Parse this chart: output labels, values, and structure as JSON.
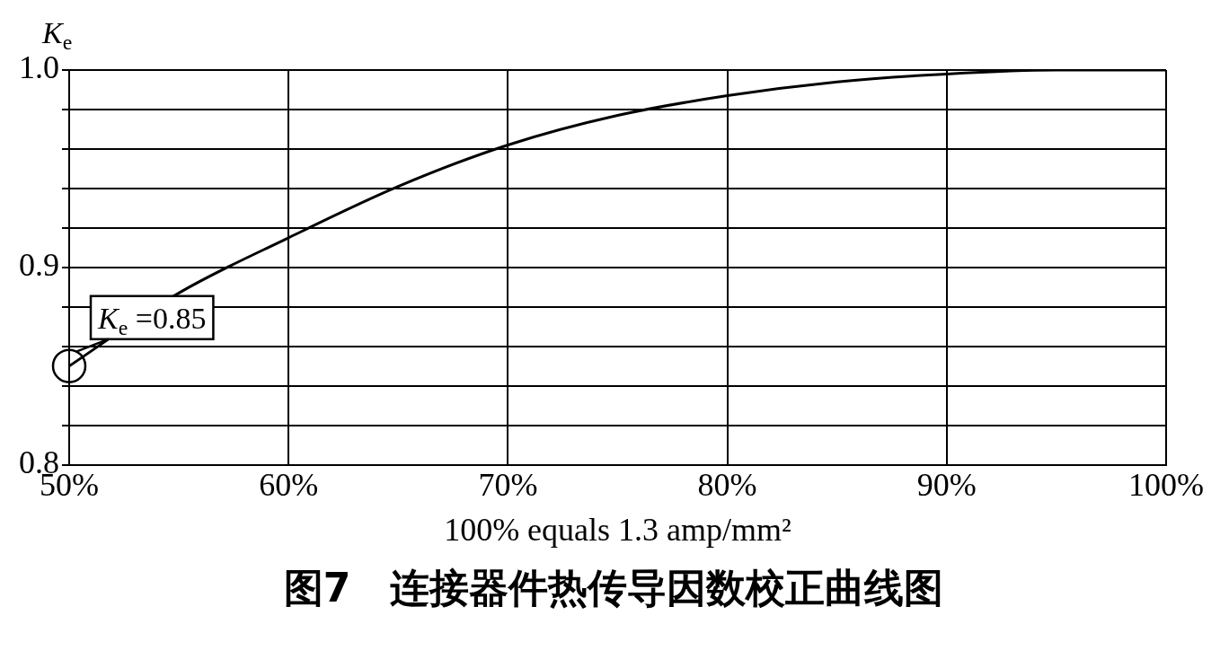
{
  "chart_data": {
    "type": "line",
    "title": "图7　连接器件热传导因数校正曲线图",
    "xlabel": "100% equals 1.3 amp/mm²",
    "ylabel": "K$_{e}$",
    "x": [
      50,
      55,
      60,
      65,
      70,
      75,
      80,
      85,
      90,
      95,
      100
    ],
    "series": [
      {
        "color": "#000000",
        "values": [
          0.85,
          0.887,
          0.915,
          0.941,
          0.962,
          0.977,
          0.987,
          0.994,
          0.998,
          1.0,
          1.0
        ]
      }
    ],
    "xlim": [
      50,
      100
    ],
    "xticks": [
      {
        "value": 50,
        "label": "50%"
      },
      {
        "value": 60,
        "label": "60%"
      },
      {
        "value": 70,
        "label": "70%"
      },
      {
        "value": 80,
        "label": "80%"
      },
      {
        "value": 90,
        "label": "90%"
      },
      {
        "value": 100,
        "label": "100%"
      }
    ],
    "ylim": [
      0.8,
      1.0
    ],
    "yticks": [
      {
        "value": 0.8,
        "label": "0.8"
      },
      {
        "value": 0.82,
        "label": null
      },
      {
        "value": 0.84,
        "label": null
      },
      {
        "value": 0.86,
        "label": null
      },
      {
        "value": 0.88,
        "label": null
      },
      {
        "value": 0.9,
        "label": "0.9"
      },
      {
        "value": 0.92,
        "label": null
      },
      {
        "value": 0.94,
        "label": null
      },
      {
        "value": 0.96,
        "label": null
      },
      {
        "value": 0.98,
        "label": null
      },
      {
        "value": 1.0,
        "label": "1.0"
      }
    ],
    "annotations": [
      {
        "text": "K$_{e}$ =0.85",
        "x": 50,
        "y": 0.85
      }
    ],
    "grid": true,
    "legend": false,
    "marker": "none",
    "line_style": "solid"
  }
}
